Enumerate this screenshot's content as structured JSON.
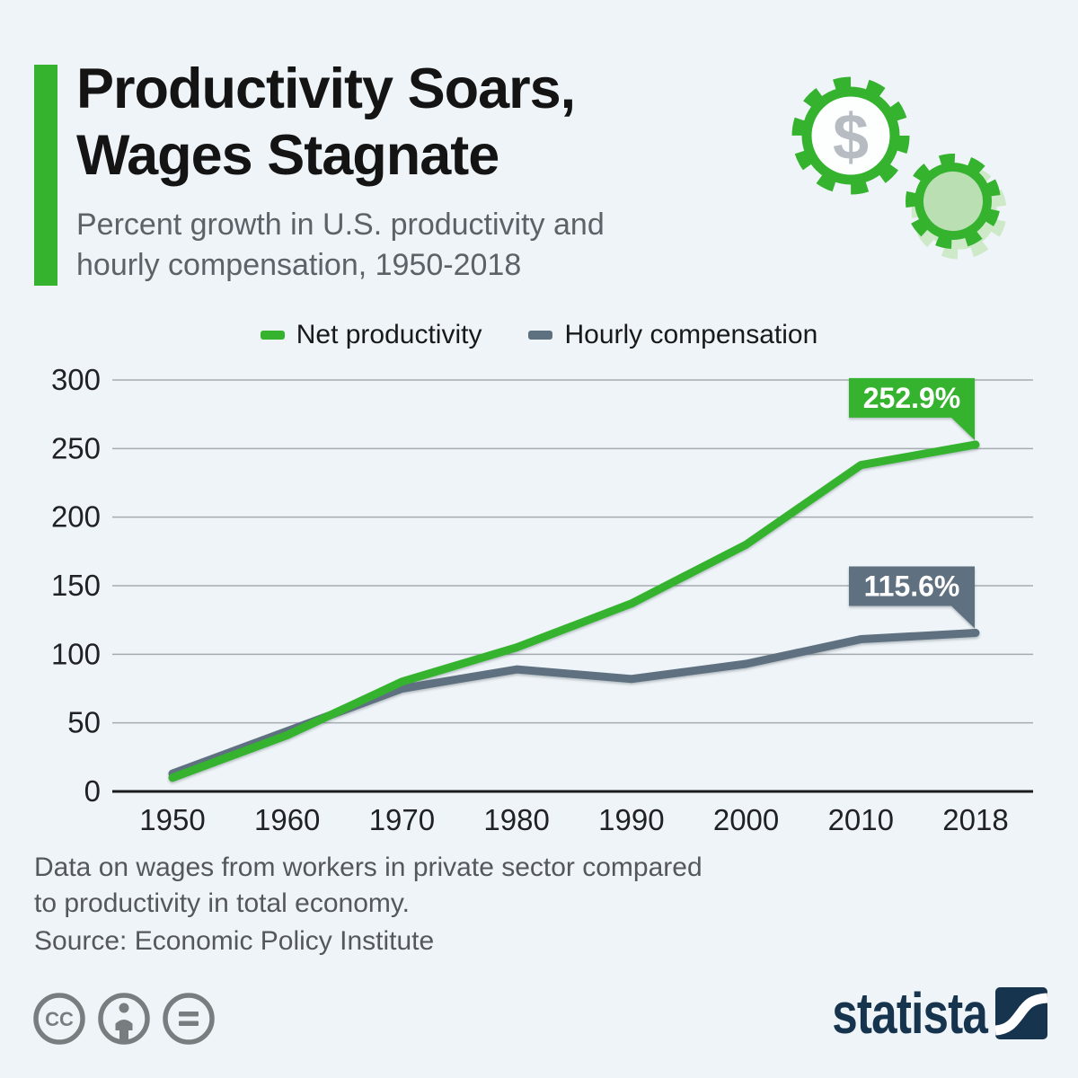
{
  "header": {
    "title_line1": "Productivity Soars,",
    "title_line2": "Wages Stagnate",
    "subtitle_line1": "Percent growth in U.S. productivity and",
    "subtitle_line2": "hourly compensation, 1950-2018"
  },
  "legend": [
    {
      "label": "Net productivity",
      "color": "#35b32f"
    },
    {
      "label": "Hourly compensation",
      "color": "#5e7180"
    }
  ],
  "chart_data": {
    "type": "line",
    "categories": [
      "1950",
      "1960",
      "1970",
      "1980",
      "1990",
      "2000",
      "2010",
      "2018"
    ],
    "series": [
      {
        "name": "Net productivity",
        "color": "#35b32f",
        "values": [
          10,
          41,
          80,
          105,
          137,
          180,
          238,
          252.9
        ],
        "callout": "252.9%"
      },
      {
        "name": "Hourly compensation",
        "color": "#5e7180",
        "values": [
          13,
          44,
          75,
          89,
          82,
          93,
          111,
          115.6
        ],
        "callout": "115.6%"
      }
    ],
    "yticks": [
      0,
      50,
      100,
      150,
      200,
      250,
      300
    ],
    "ylim": [
      0,
      300
    ],
    "grid": true,
    "legend_position": "top",
    "title": "Percent growth in U.S. productivity and hourly compensation, 1950-2018"
  },
  "footer": {
    "note_line1": "Data on wages from workers in private sector compared",
    "note_line2": "to productivity in total economy.",
    "source": "Source: Economic Policy Institute"
  },
  "branding": {
    "logo_text": "statista",
    "gear_symbol": "$",
    "cc_label": "CC"
  },
  "colors": {
    "background": "#eff4f8",
    "accent_green": "#35b32f",
    "slate_gray": "#5e7180",
    "navy_logo": "#17344f",
    "grid_line": "#a5abb1",
    "axis_line": "#191b1d"
  }
}
